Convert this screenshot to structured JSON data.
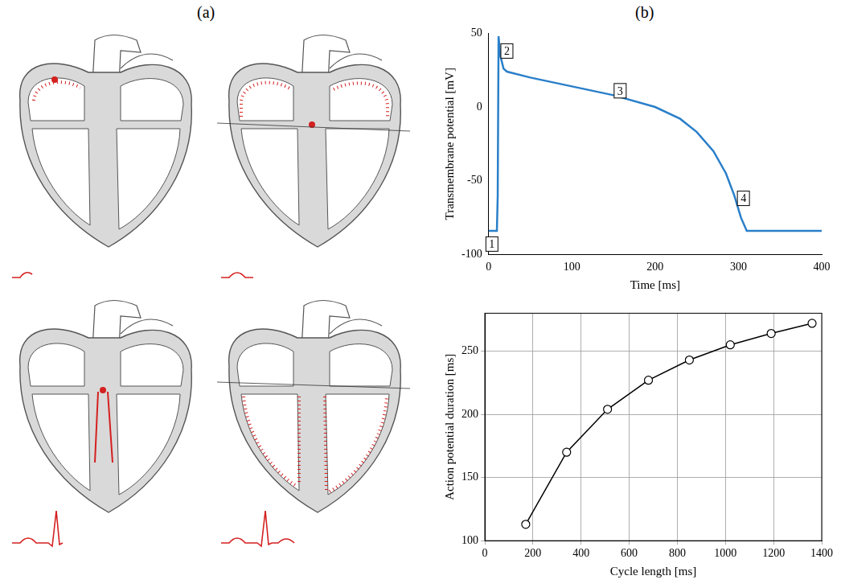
{
  "panel_labels": [
    "(a)",
    "(b)"
  ],
  "chart_data": [
    {
      "type": "line",
      "x_label": "Time [ms]",
      "y_label": "Transmembrane potential [mV]",
      "xlim": [
        0,
        400
      ],
      "xticks": [
        0,
        100,
        200,
        300,
        400
      ],
      "ylim": [
        -100,
        50
      ],
      "yticks": [
        -100,
        -50,
        0,
        50
      ],
      "grid": false,
      "color": "#2a7fc9",
      "marker": "none",
      "line_style": "solid",
      "x": [
        0,
        10,
        11,
        12,
        14,
        18,
        22,
        50,
        100,
        150,
        200,
        230,
        250,
        270,
        285,
        295,
        303,
        310,
        320,
        400
      ],
      "values": [
        -84,
        -84,
        -60,
        48,
        35,
        26,
        24,
        20,
        14,
        8,
        0,
        -8,
        -17,
        -30,
        -45,
        -60,
        -75,
        -84,
        -84,
        -84
      ],
      "annotations": [
        {
          "text": "1",
          "x": 4,
          "y": -93
        },
        {
          "text": "2",
          "x": 22,
          "y": 38
        },
        {
          "text": "3",
          "x": 158,
          "y": 11
        },
        {
          "text": "4",
          "x": 306,
          "y": -62
        }
      ]
    },
    {
      "type": "line",
      "x_label": "Cycle length [ms]",
      "y_label": "Action potential duration [ms]",
      "xlim": [
        0,
        1400
      ],
      "xticks": [
        0,
        200,
        400,
        600,
        800,
        1000,
        1200,
        1400
      ],
      "ylim": [
        100,
        280
      ],
      "yticks": [
        100,
        150,
        200,
        250
      ],
      "grid": true,
      "color": "#000000",
      "marker": "circle",
      "line_style": "solid",
      "x": [
        170,
        340,
        510,
        680,
        850,
        1020,
        1190,
        1360
      ],
      "values": [
        113,
        170,
        204,
        227,
        243,
        255,
        264,
        272
      ]
    }
  ]
}
